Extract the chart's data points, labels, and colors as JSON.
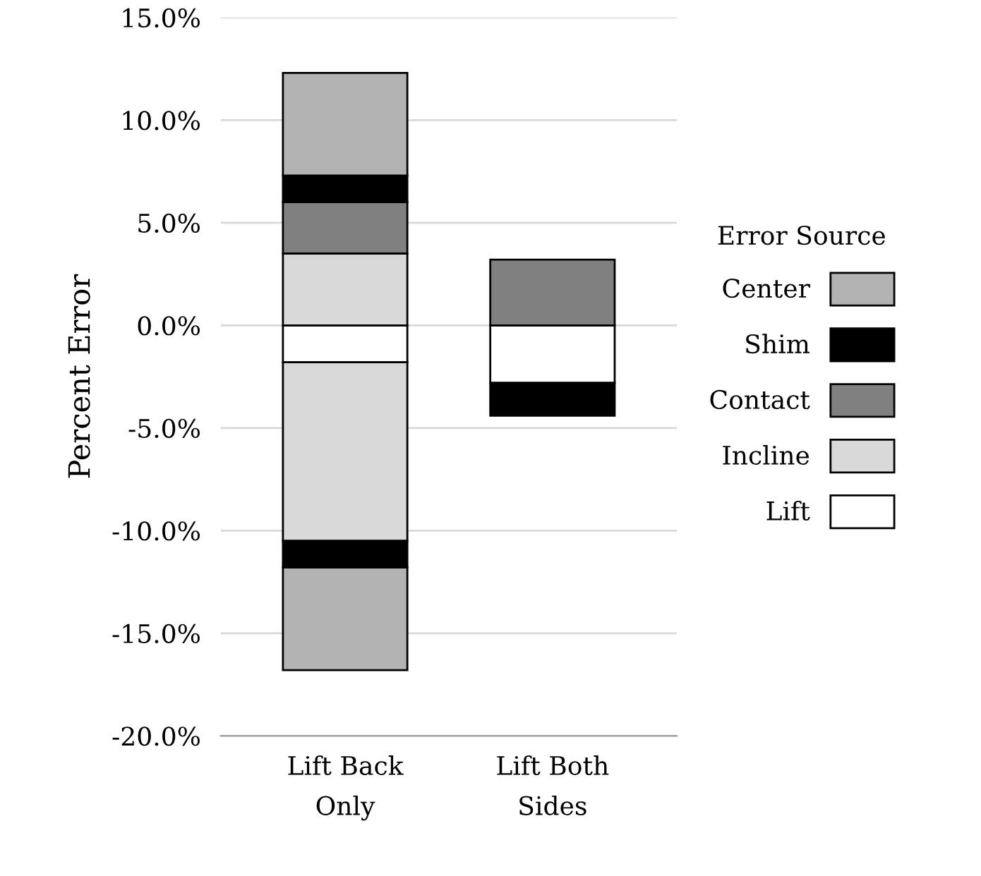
{
  "chart_data": {
    "type": "bar",
    "stacked": true,
    "ylabel": "Percent Error",
    "legend_title": "Error Source",
    "categories": [
      "Lift Back\nOnly",
      "Lift Both\nSides"
    ],
    "series": [
      {
        "name": "Lift",
        "color": "#ffffff",
        "values": [
          -1.8,
          -2.8
        ]
      },
      {
        "name": "Incline",
        "color": "#d9d9d9",
        "values": [
          3.5,
          null
        ]
      },
      {
        "color": "#d9d9d9",
        "values": [
          -8.7,
          null
        ]
      },
      {
        "name": "Contact",
        "color": "#808080",
        "values": [
          2.5,
          3.2
        ]
      },
      {
        "name": "Shim",
        "color": "#000000",
        "values": [
          1.3,
          null
        ]
      },
      {
        "color": "#000000",
        "values": [
          -1.3,
          -1.6
        ]
      },
      {
        "name": "Center",
        "color": "#b3b3b3",
        "values": [
          5.0,
          null
        ]
      },
      {
        "color": "#b3b3b3",
        "values": [
          -5.0,
          null
        ]
      }
    ],
    "ylim": [
      -20,
      15
    ],
    "yticks": [
      {
        "value": -20,
        "label": "-20.0%"
      },
      {
        "value": -15,
        "label": "-15.0%"
      },
      {
        "value": -10,
        "label": "-10.0%"
      },
      {
        "value": -5,
        "label": "-5.0%"
      },
      {
        "value": 0,
        "label": "0.0%"
      },
      {
        "value": 5,
        "label": "5.0%"
      },
      {
        "value": 10,
        "label": "10.0%"
      },
      {
        "value": 15,
        "label": "15.0%"
      }
    ],
    "grid": "y",
    "legend": "right"
  }
}
